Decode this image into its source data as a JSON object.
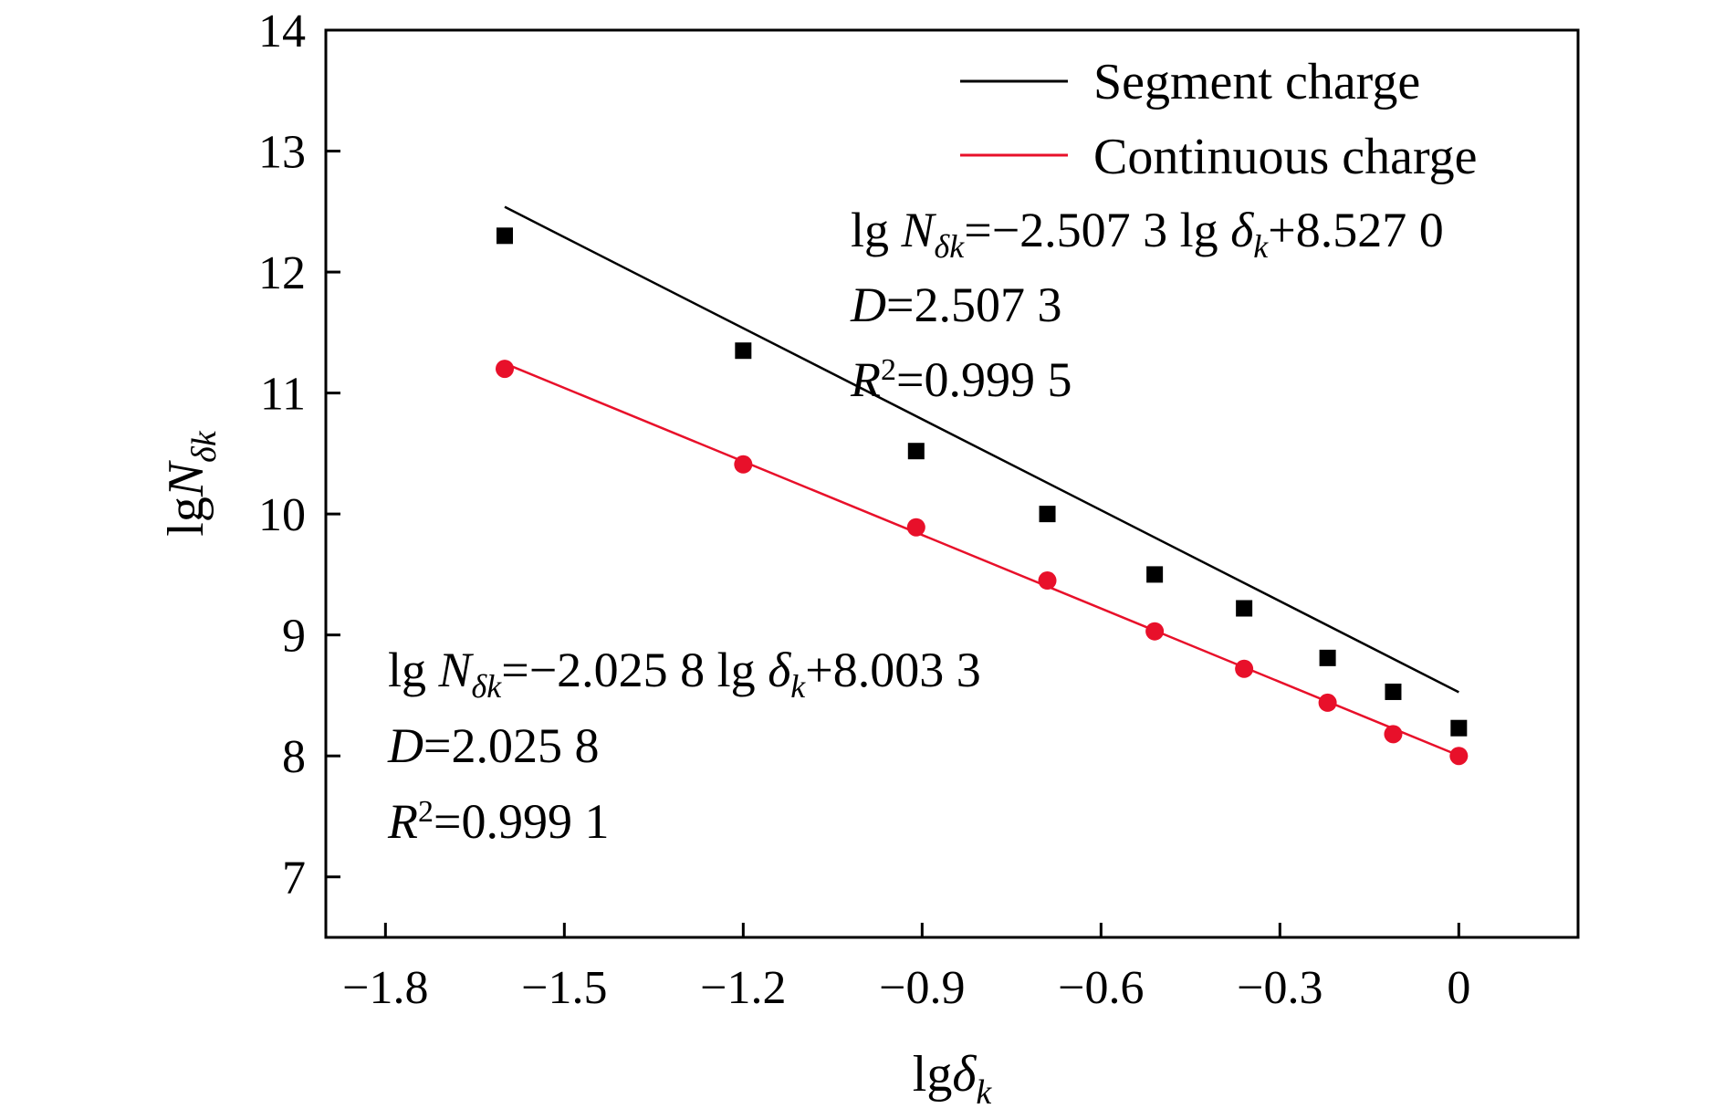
{
  "chart_data": {
    "type": "scatter",
    "title": "",
    "xlabel": {
      "base": "lg",
      "symbol": "δ",
      "subscript": "k"
    },
    "ylabel": {
      "base": "lg",
      "symbol": "N",
      "subscript": "δk"
    },
    "xlim": [
      -1.9,
      0.2
    ],
    "ylim": [
      6.5,
      14
    ],
    "xticks": [
      -1.8,
      -1.5,
      -1.2,
      -0.9,
      -0.6,
      -0.3,
      0
    ],
    "xtick_labels": [
      "−1.8",
      "−1.5",
      "−1.2",
      "−0.9",
      "−0.6",
      "−0.3",
      "0"
    ],
    "yticks": [
      7,
      8,
      9,
      10,
      11,
      12,
      13,
      14
    ],
    "ytick_labels": [
      "7",
      "8",
      "9",
      "10",
      "11",
      "12",
      "13",
      "14"
    ],
    "grid": false,
    "legend_position": "top-right",
    "series": [
      {
        "name": "Segment charge",
        "color": "#000000",
        "marker": "square",
        "x": [
          -1.6,
          -1.2,
          -0.91,
          -0.69,
          -0.51,
          -0.36,
          -0.22,
          -0.11,
          0
        ],
        "y": [
          12.3,
          11.35,
          10.52,
          10.0,
          9.5,
          9.22,
          8.81,
          8.53,
          8.23
        ],
        "fit": {
          "slope": -2.5073,
          "intercept": 8.527
        }
      },
      {
        "name": "Continuous charge",
        "color": "#e8102a",
        "marker": "circle",
        "x": [
          -1.6,
          -1.2,
          -0.91,
          -0.69,
          -0.51,
          -0.36,
          -0.22,
          -0.11,
          0
        ],
        "y": [
          11.2,
          10.41,
          9.89,
          9.45,
          9.03,
          8.72,
          8.44,
          8.18,
          8.0
        ],
        "fit": {
          "slope": -2.0258,
          "intercept": 8.0033
        }
      }
    ],
    "annotations": [
      {
        "series": "Segment charge",
        "equation": {
          "p1": "lg ",
          "p2": "N",
          "p3": "δk",
          "p4": "=−2.507 3 lg ",
          "p5": "δ",
          "p6": "k",
          "p7": "+8.527 0"
        },
        "dim": {
          "var": "D",
          "rest": "=2.507 3"
        },
        "r2": {
          "var": "R",
          "sup": "2",
          "rest": "=0.999 5"
        }
      },
      {
        "series": "Continuous charge",
        "equation": {
          "p1": "lg ",
          "p2": "N",
          "p3": "δk",
          "p4": "=−2.025 8 lg ",
          "p5": "δ",
          "p6": "k",
          "p7": "+8.003 3"
        },
        "dim": {
          "var": "D",
          "rest": "=2.025 8"
        },
        "r2": {
          "var": "R",
          "sup": "2",
          "rest": "=0.999 1"
        }
      }
    ]
  }
}
